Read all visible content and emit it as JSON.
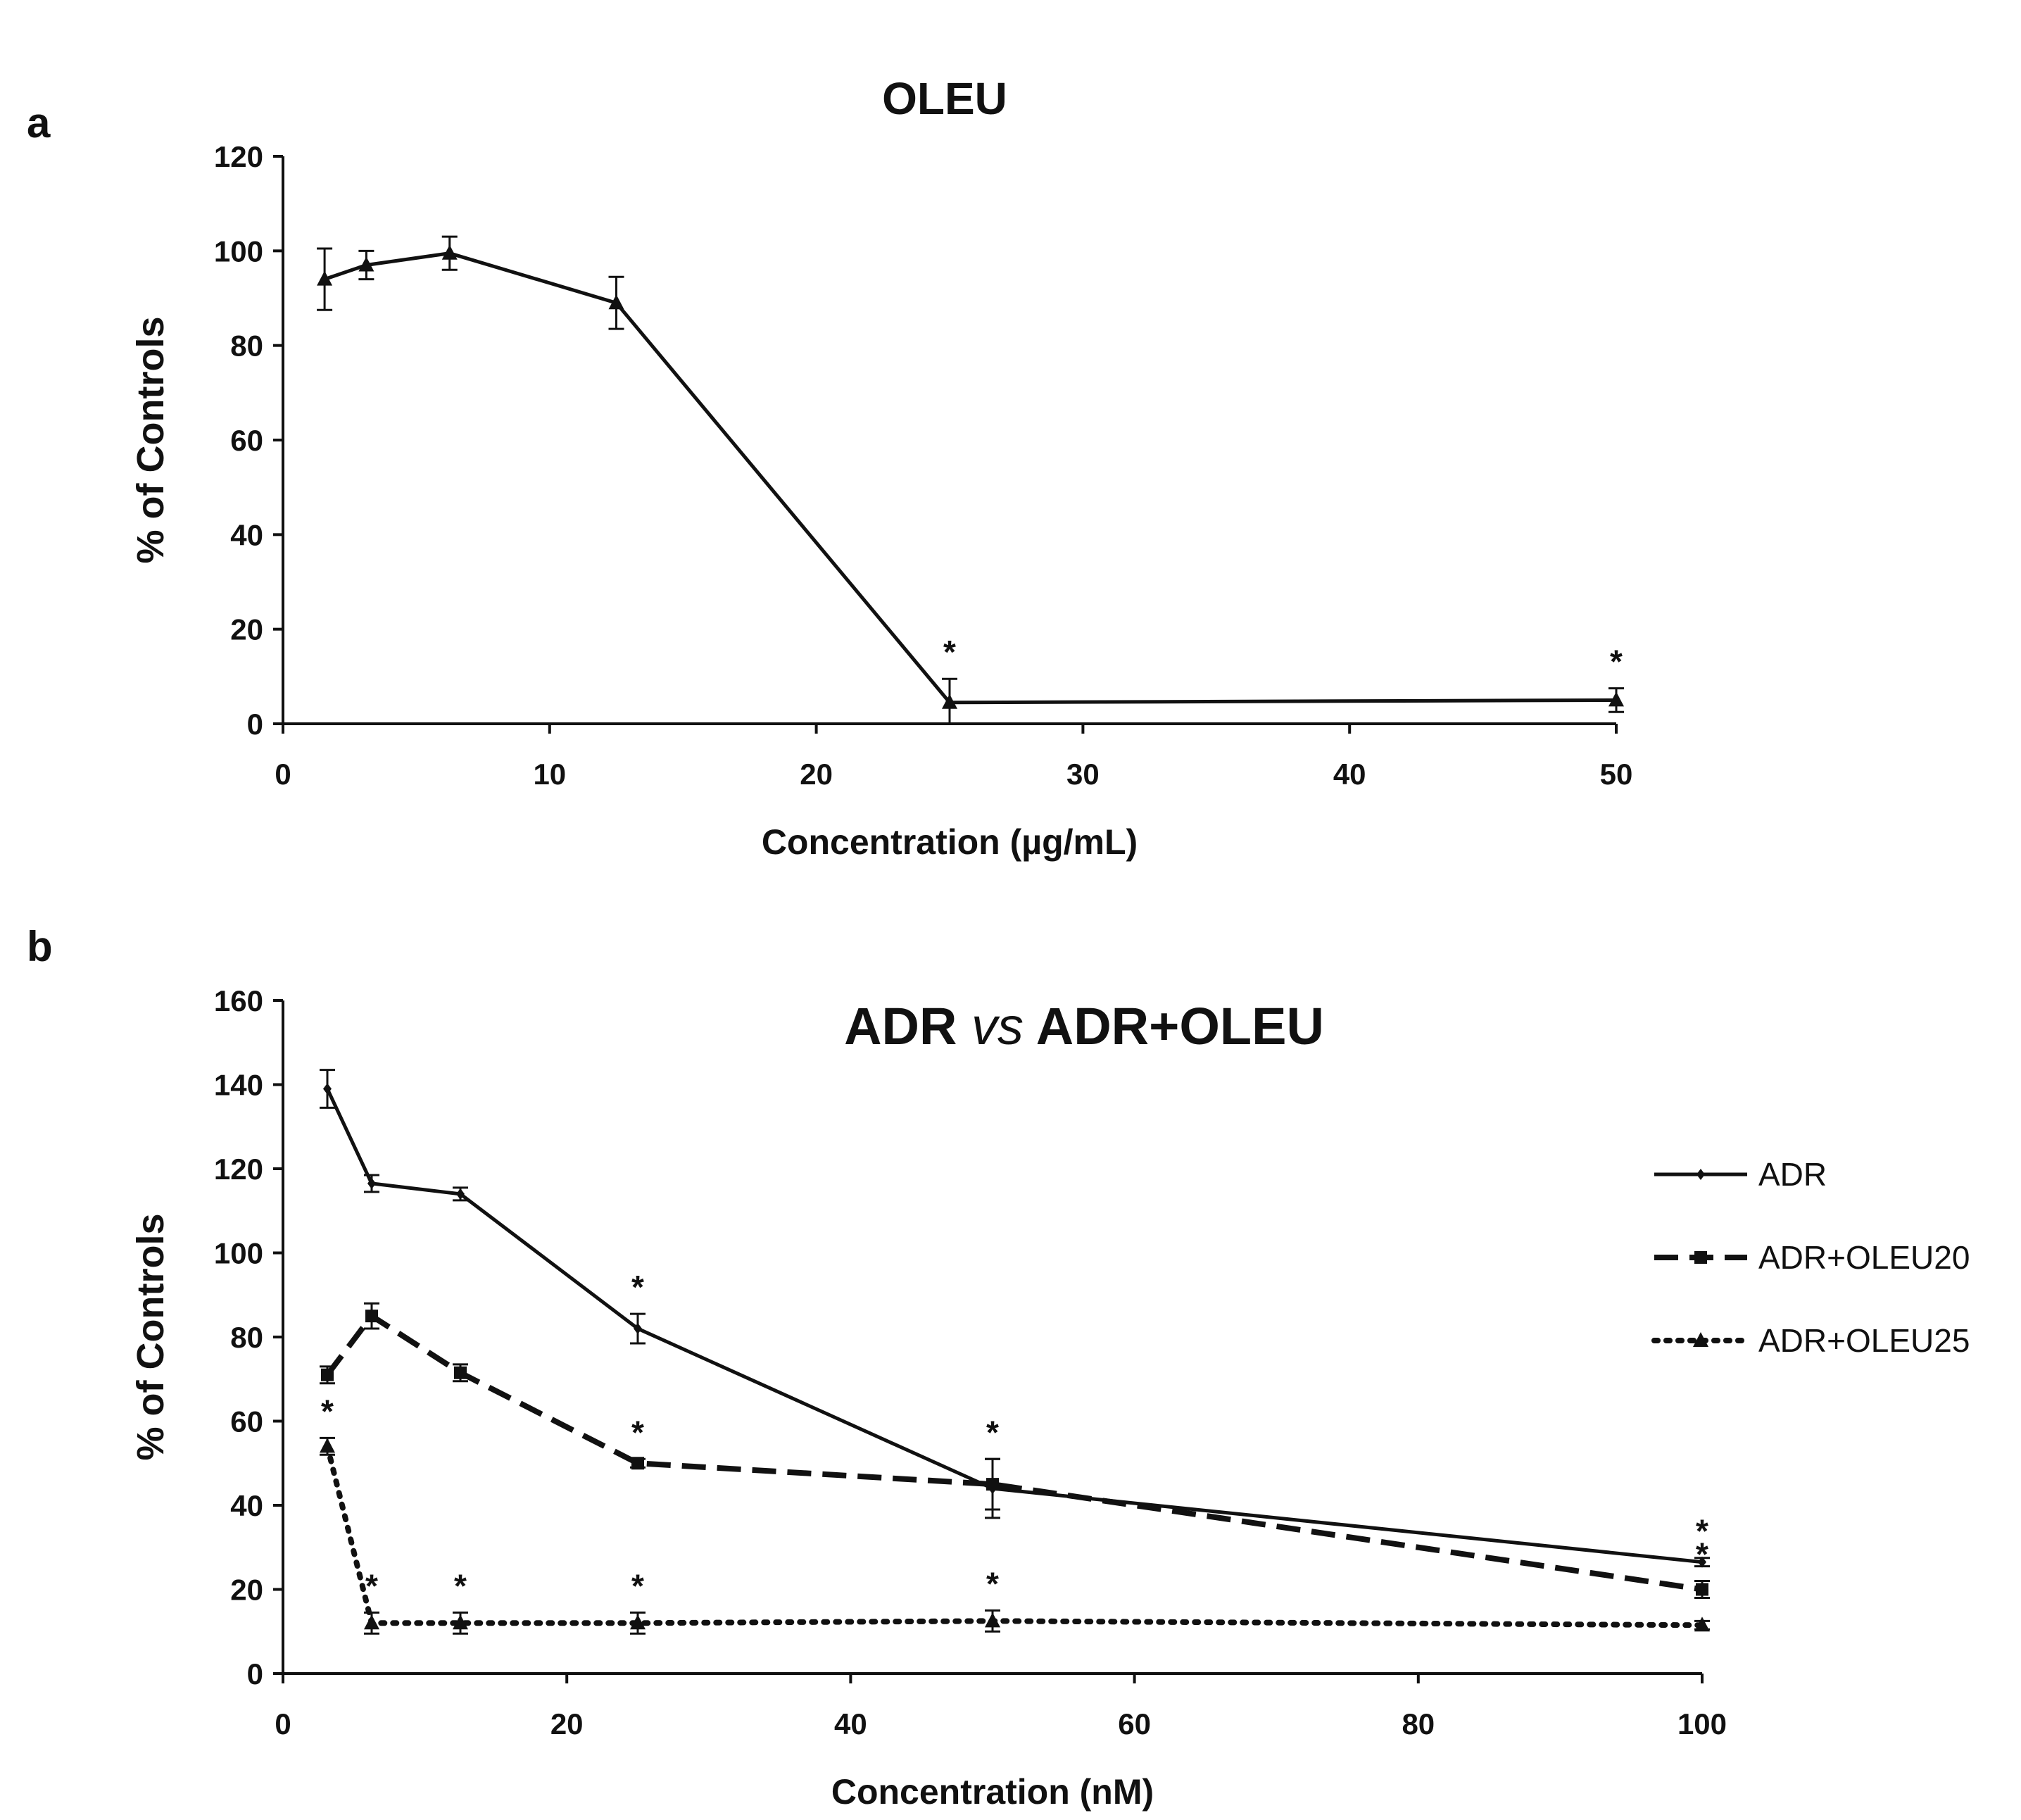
{
  "panels": {
    "a": "a",
    "b": "b"
  },
  "chart_data": [
    {
      "type": "line",
      "panel": "a",
      "title": "OLEU",
      "xlabel": "Concentration (µg/mL)",
      "ylabel": "% of Controls",
      "xlim": [
        0,
        50
      ],
      "ylim": [
        0,
        120
      ],
      "xticks": [
        0,
        10,
        20,
        30,
        40,
        50
      ],
      "yticks": [
        0,
        20,
        40,
        60,
        80,
        100,
        120
      ],
      "series": [
        {
          "name": "OLEU",
          "style": "solid",
          "marker": "triangle",
          "x": [
            1.56,
            3.125,
            6.25,
            12.5,
            25,
            50
          ],
          "y": [
            94,
            97,
            99.5,
            89,
            4.5,
            5
          ],
          "err": [
            6.5,
            3,
            3.5,
            5.5,
            5,
            2.5
          ],
          "significant": [
            false,
            false,
            false,
            false,
            true,
            true
          ]
        }
      ]
    },
    {
      "type": "line",
      "panel": "b",
      "title_parts": [
        "ADR ",
        "vs",
        " ADR+OLEU"
      ],
      "xlabel": "Concentration (nM)",
      "ylabel": "% of Controls",
      "xlim": [
        0,
        100
      ],
      "ylim": [
        0,
        160
      ],
      "xticks": [
        0,
        20,
        40,
        60,
        80,
        100
      ],
      "yticks": [
        0,
        20,
        40,
        60,
        80,
        100,
        120,
        140,
        160
      ],
      "legend_position": "right",
      "series": [
        {
          "name": "ADR",
          "style": "solid",
          "marker": "diamond",
          "x": [
            3.125,
            6.25,
            12.5,
            25,
            50,
            100
          ],
          "y": [
            139,
            116.5,
            114,
            82,
            44,
            26.5
          ],
          "err": [
            4.5,
            2,
            1.5,
            3.5,
            7,
            1
          ],
          "significant": [
            false,
            false,
            false,
            true,
            true,
            true
          ]
        },
        {
          "name": "ADR+OLEU20",
          "style": "dashed",
          "marker": "square",
          "x": [
            3.125,
            6.25,
            12.5,
            25,
            50,
            100
          ],
          "y": [
            71,
            85,
            71.5,
            50,
            45,
            20
          ],
          "err": [
            2,
            3,
            2,
            1,
            6,
            2
          ],
          "significant": [
            false,
            false,
            false,
            true,
            false,
            true
          ]
        },
        {
          "name": "ADR+OLEU25",
          "style": "dotted",
          "marker": "triangle",
          "x": [
            3.125,
            6.25,
            12.5,
            25,
            50,
            100
          ],
          "y": [
            54,
            12,
            12,
            12,
            12.5,
            11.5
          ],
          "err": [
            2,
            2.5,
            2.5,
            2.5,
            2.5,
            1
          ],
          "significant": [
            true,
            true,
            true,
            true,
            true,
            true
          ]
        }
      ]
    }
  ],
  "annotation": {
    "significance_mark": "*"
  }
}
